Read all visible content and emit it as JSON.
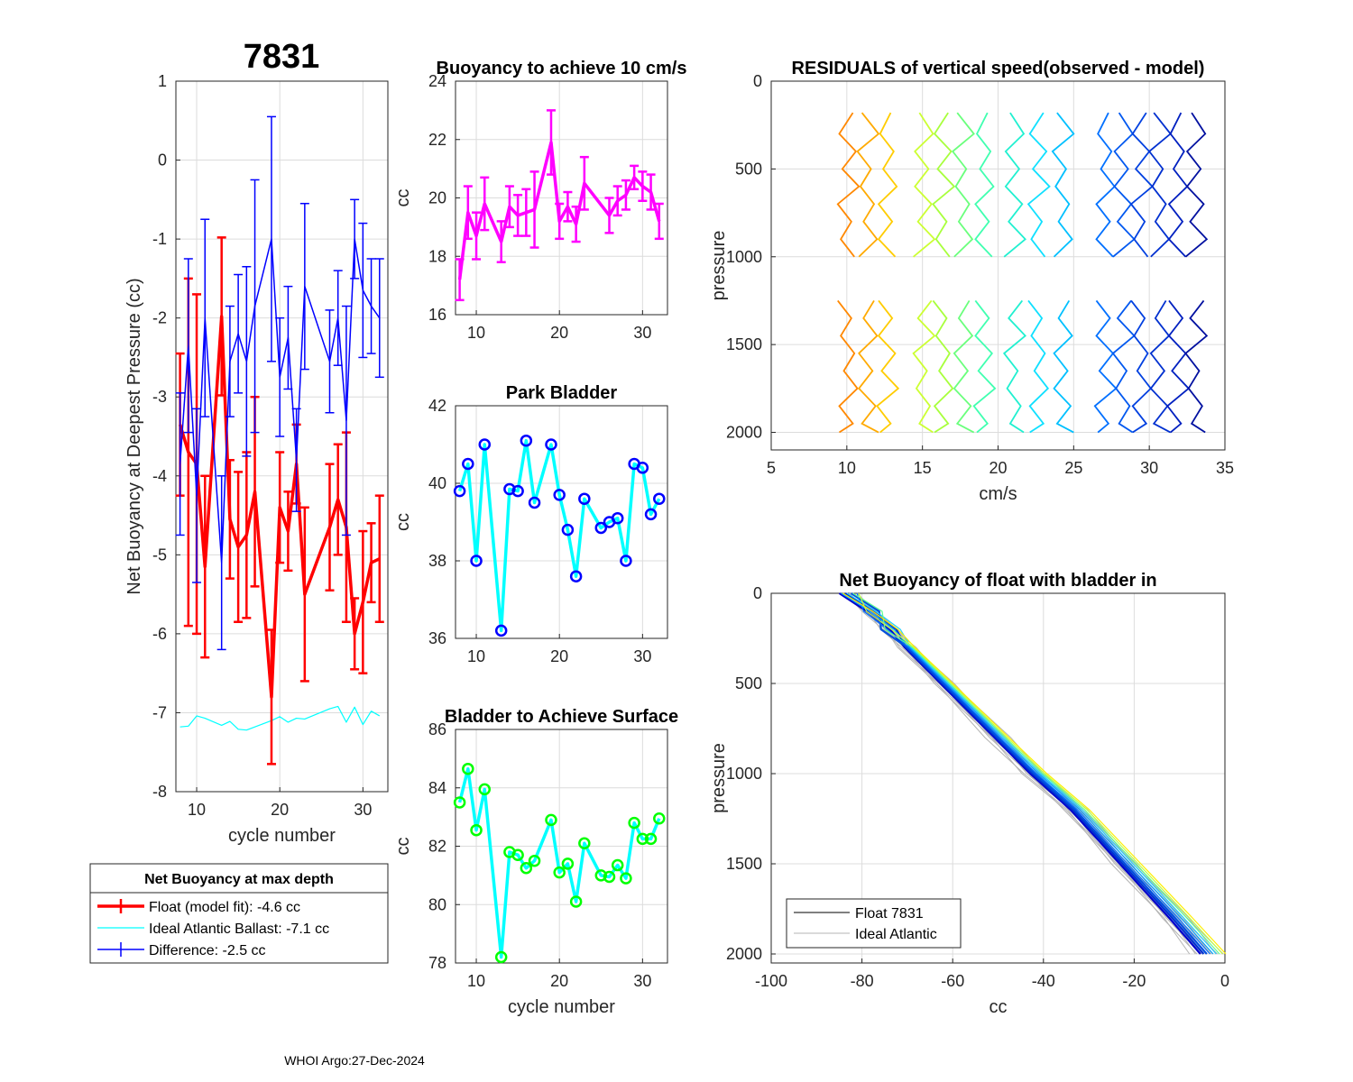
{
  "figure_title": "7831",
  "footer": "WHOI Argo:27-Dec-2024",
  "legend_main": {
    "title": "Net Buoyancy at max depth",
    "entries": [
      {
        "label": "Float (model fit):  -4.6 cc",
        "color": "#ff0000"
      },
      {
        "label": "Ideal Atlantic Ballast:  -7.1 cc",
        "color": "#00ffff"
      },
      {
        "label": "Difference:  -2.5 cc",
        "color": "#0000ff"
      }
    ]
  },
  "legend_profile": {
    "entries": [
      {
        "label": "Float 7831",
        "color": "#000000"
      },
      {
        "label": "Ideal Atlantic",
        "color": "#b4b4b4"
      }
    ]
  },
  "chart_data": [
    {
      "id": "net_buoyancy",
      "type": "line",
      "title": "",
      "xlabel": "cycle number",
      "ylabel": "Net Buoyancy at Deepest Pressure (cc)",
      "xlim": [
        7.5,
        33
      ],
      "ylim": [
        -8,
        1
      ],
      "xticks": [
        10,
        20,
        30
      ],
      "yticks": [
        1,
        0,
        -1,
        -2,
        -3,
        -4,
        -5,
        -6,
        -7,
        -8
      ],
      "series": [
        {
          "name": "Float (model fit)",
          "color": "#ff0000",
          "width": 3.5,
          "x": [
            8,
            9,
            10,
            11,
            13,
            14,
            15,
            16,
            17,
            19,
            20,
            21,
            22,
            23,
            26,
            27,
            28,
            29,
            30,
            31,
            32
          ],
          "y": [
            -3.35,
            -3.7,
            -3.85,
            -5.15,
            -1.98,
            -4.55,
            -4.9,
            -4.75,
            -4.2,
            -6.8,
            -4.4,
            -4.7,
            -3.85,
            -5.5,
            -4.65,
            -4.3,
            -4.65,
            -6.0,
            -5.6,
            -5.1,
            -5.05
          ],
          "err": [
            0.9,
            2.2,
            2.15,
            1.15,
            1.0,
            0.75,
            0.95,
            1.05,
            1.2,
            0.85,
            0.7,
            0.5,
            0.5,
            1.1,
            0.8,
            0.7,
            1.2,
            0.45,
            0.9,
            0.5,
            0.8
          ]
        },
        {
          "name": "Difference",
          "color": "#0000ff",
          "width": 1.5,
          "x": [
            8,
            9,
            10,
            11,
            13,
            14,
            15,
            16,
            17,
            19,
            20,
            21,
            22,
            23,
            26,
            27,
            28,
            29,
            30,
            31,
            32
          ],
          "y": [
            -3.85,
            -2.35,
            -4.25,
            -2.0,
            -5.1,
            -2.55,
            -2.2,
            -2.55,
            -1.85,
            -1.0,
            -2.75,
            -2.25,
            -3.8,
            -1.6,
            -2.55,
            -2.0,
            -3.3,
            -1.0,
            -1.65,
            -1.85,
            -2.0
          ],
          "err": [
            0.9,
            1.1,
            1.1,
            1.25,
            1.1,
            0.7,
            0.75,
            1.2,
            1.6,
            1.55,
            0.75,
            0.65,
            0.65,
            1.05,
            0.65,
            0.6,
            1.45,
            0.5,
            0.85,
            0.6,
            0.75
          ]
        },
        {
          "name": "Ideal Atlantic Ballast",
          "color": "#00ffff",
          "width": 1.2,
          "x": [
            8,
            9,
            10,
            11,
            13,
            14,
            15,
            16,
            17,
            19,
            20,
            21,
            22,
            23,
            26,
            27,
            28,
            29,
            30,
            31,
            32
          ],
          "y": [
            -7.18,
            -7.17,
            -7.04,
            -7.07,
            -7.16,
            -7.11,
            -7.21,
            -7.22,
            -7.18,
            -7.1,
            -7.05,
            -7.12,
            -7.07,
            -7.08,
            -6.95,
            -6.92,
            -7.12,
            -6.93,
            -7.15,
            -6.98,
            -7.04
          ],
          "err": null
        }
      ]
    },
    {
      "id": "buoyancy_10cms",
      "type": "line",
      "title": "Buoyancy to achieve 10 cm/s",
      "xlabel": "",
      "ylabel": "cc",
      "xlim": [
        7.5,
        33
      ],
      "ylim": [
        16,
        24
      ],
      "xticks": [
        10,
        20,
        30
      ],
      "yticks": [
        24,
        22,
        20,
        18,
        16
      ],
      "series": [
        {
          "name": "Buoyancy",
          "color": "#ff00ff",
          "width": 3.5,
          "x": [
            8,
            9,
            10,
            11,
            13,
            14,
            15,
            16,
            17,
            19,
            20,
            21,
            22,
            23,
            26,
            27,
            28,
            29,
            30,
            31,
            32
          ],
          "y": [
            17.2,
            19.5,
            18.7,
            19.8,
            18.5,
            19.7,
            19.4,
            19.5,
            19.6,
            21.9,
            19.2,
            19.7,
            19.1,
            20.5,
            19.4,
            19.9,
            20.1,
            20.7,
            20.4,
            20.2,
            19.2
          ],
          "err": [
            0.7,
            0.9,
            0.8,
            0.9,
            0.7,
            0.7,
            0.7,
            0.8,
            1.3,
            1.1,
            0.6,
            0.5,
            0.6,
            0.9,
            0.6,
            0.5,
            0.5,
            0.4,
            0.5,
            0.6,
            0.6
          ]
        }
      ]
    },
    {
      "id": "park_bladder",
      "type": "line",
      "title": "Park Bladder",
      "xlabel": "",
      "ylabel": "cc",
      "xlim": [
        7.5,
        33
      ],
      "ylim": [
        36,
        42
      ],
      "xticks": [
        10,
        20,
        30
      ],
      "yticks": [
        42,
        40,
        38,
        36
      ],
      "series": [
        {
          "name": "Park Bladder",
          "color": "#00ffff",
          "marker": "#0000ff",
          "width": 3.5,
          "x": [
            8,
            9,
            10,
            11,
            13,
            14,
            15,
            16,
            17,
            19,
            20,
            21,
            22,
            23,
            25,
            26,
            27,
            28,
            29,
            30,
            31,
            32
          ],
          "y": [
            39.8,
            40.5,
            38.0,
            41.0,
            36.2,
            39.85,
            39.8,
            41.1,
            39.5,
            41.0,
            39.7,
            38.8,
            37.6,
            39.6,
            38.85,
            39.0,
            39.1,
            38.0,
            40.5,
            40.4,
            39.2,
            39.6
          ]
        }
      ]
    },
    {
      "id": "bladder_surface",
      "type": "line",
      "title": "Bladder to Achieve Surface",
      "xlabel": "cycle number",
      "ylabel": "cc",
      "xlim": [
        7.5,
        33
      ],
      "ylim": [
        78,
        86
      ],
      "xticks": [
        10,
        20,
        30
      ],
      "yticks": [
        86,
        84,
        82,
        80,
        78
      ],
      "series": [
        {
          "name": "Bladder to Achieve Surface",
          "color": "#00ffff",
          "marker": "#00ff00",
          "width": 3.5,
          "x": [
            8,
            9,
            10,
            11,
            13,
            14,
            15,
            16,
            17,
            19,
            20,
            21,
            22,
            23,
            25,
            26,
            27,
            28,
            29,
            30,
            31,
            32
          ],
          "y": [
            83.5,
            84.65,
            82.55,
            83.95,
            78.2,
            81.8,
            81.7,
            81.25,
            81.5,
            82.9,
            81.1,
            81.4,
            80.1,
            82.1,
            81.0,
            80.95,
            81.35,
            80.9,
            82.8,
            82.25,
            82.25,
            82.95
          ]
        }
      ]
    },
    {
      "id": "residuals",
      "type": "line",
      "title": "RESIDUALS of vertical speed(observed - model)",
      "xlabel": "cm/s",
      "ylabel": "pressure",
      "xlim": [
        5,
        35
      ],
      "ylim": [
        0,
        2100
      ],
      "y_reversed": true,
      "xticks": [
        5,
        10,
        15,
        20,
        25,
        30,
        35
      ],
      "yticks": [
        0,
        500,
        1000,
        1500,
        2000
      ],
      "profiles": {
        "top_pressures": [
          180,
          300,
          400,
          500,
          600,
          700,
          800,
          900,
          1000
        ],
        "bottom_pressures": [
          1250,
          1350,
          1450,
          1550,
          1650,
          1750,
          1850,
          1950,
          2000
        ],
        "offsets": [
          10,
          11.3,
          12.6,
          15,
          16.3,
          17.6,
          19,
          21,
          22.6,
          24.2,
          27,
          28.2,
          29.4,
          30.6,
          31.8,
          33
        ],
        "colors": [
          "#ff8800",
          "#ffaa00",
          "#ffcc00",
          "#ccff33",
          "#a8ff3c",
          "#6aff7c",
          "#40ffb0",
          "#20f0d0",
          "#10e0ff",
          "#00c0ff",
          "#0070ff",
          "#0058f0",
          "#0040e0",
          "#0030d0",
          "#0020c0",
          "#0010a0"
        ],
        "deviations": [
          0.4,
          -0.5,
          0.6,
          -0.3,
          0.8,
          -0.6,
          0.3,
          -0.4,
          0.5,
          -0.2,
          0.7,
          -0.5
        ]
      }
    },
    {
      "id": "net_buoyancy_profile",
      "type": "line",
      "title": "Net Buoyancy of float with bladder in",
      "xlabel": "cc",
      "ylabel": "pressure",
      "xlim": [
        -100,
        0
      ],
      "ylim": [
        0,
        2050
      ],
      "y_reversed": true,
      "xticks": [
        -100,
        -80,
        -60,
        -40,
        -20,
        0
      ],
      "yticks": [
        0,
        500,
        1000,
        1500,
        2000
      ],
      "profile_base": {
        "pressure": [
          0,
          100,
          200,
          300,
          500,
          800,
          1000,
          1200,
          1500,
          1800,
          2000
        ],
        "cc": [
          -83,
          -78,
          -74,
          -70,
          -62,
          -50,
          -42,
          -33,
          -22,
          -11,
          -4
        ]
      },
      "profile_colors": [
        "#0000cc",
        "#0030d0",
        "#0050e0",
        "#0070ff",
        "#00a0ff",
        "#20d0ff",
        "#60ff90",
        "#c0ff40",
        "#ffee00"
      ]
    }
  ]
}
